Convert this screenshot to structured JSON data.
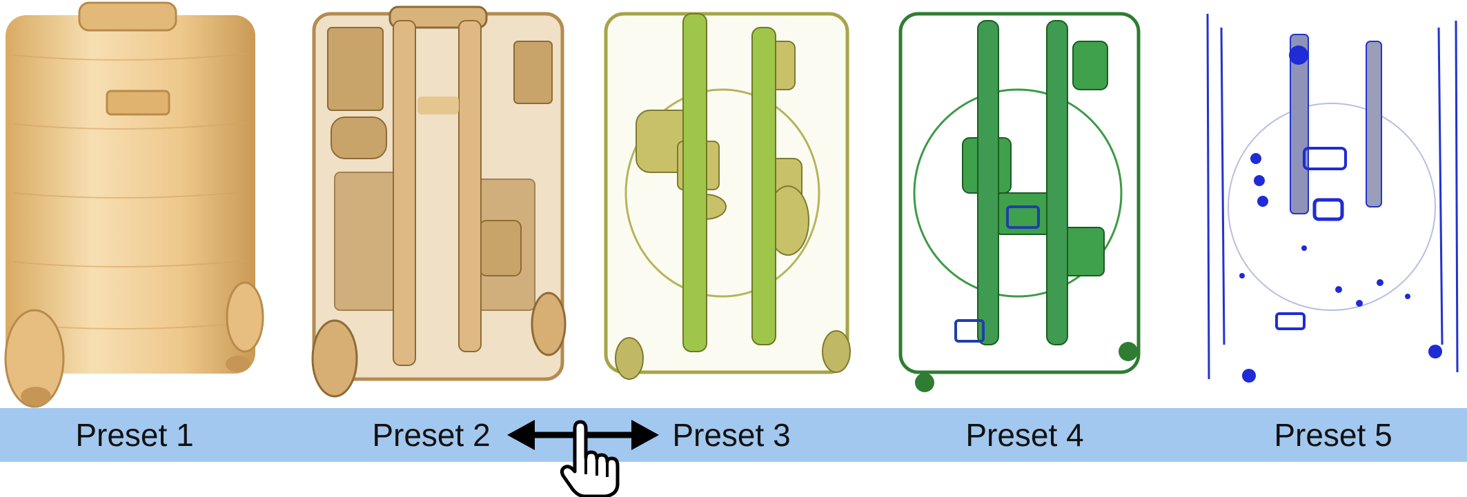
{
  "presets": [
    {
      "label": "Preset 1"
    },
    {
      "label": "Preset 2"
    },
    {
      "label": "Preset 3"
    },
    {
      "label": "Preset 4"
    },
    {
      "label": "Preset 5"
    }
  ],
  "colors": {
    "bar": "#a3c8ef",
    "preset1": "#ecc486",
    "preset2": "#c9a46a",
    "preset3": "#b9b95a",
    "preset4": "#2e8b3c",
    "preset5": "#1f2bd6"
  },
  "icons": {
    "arrow": "double-arrow-left-right",
    "pointer": "hand-pointer"
  }
}
